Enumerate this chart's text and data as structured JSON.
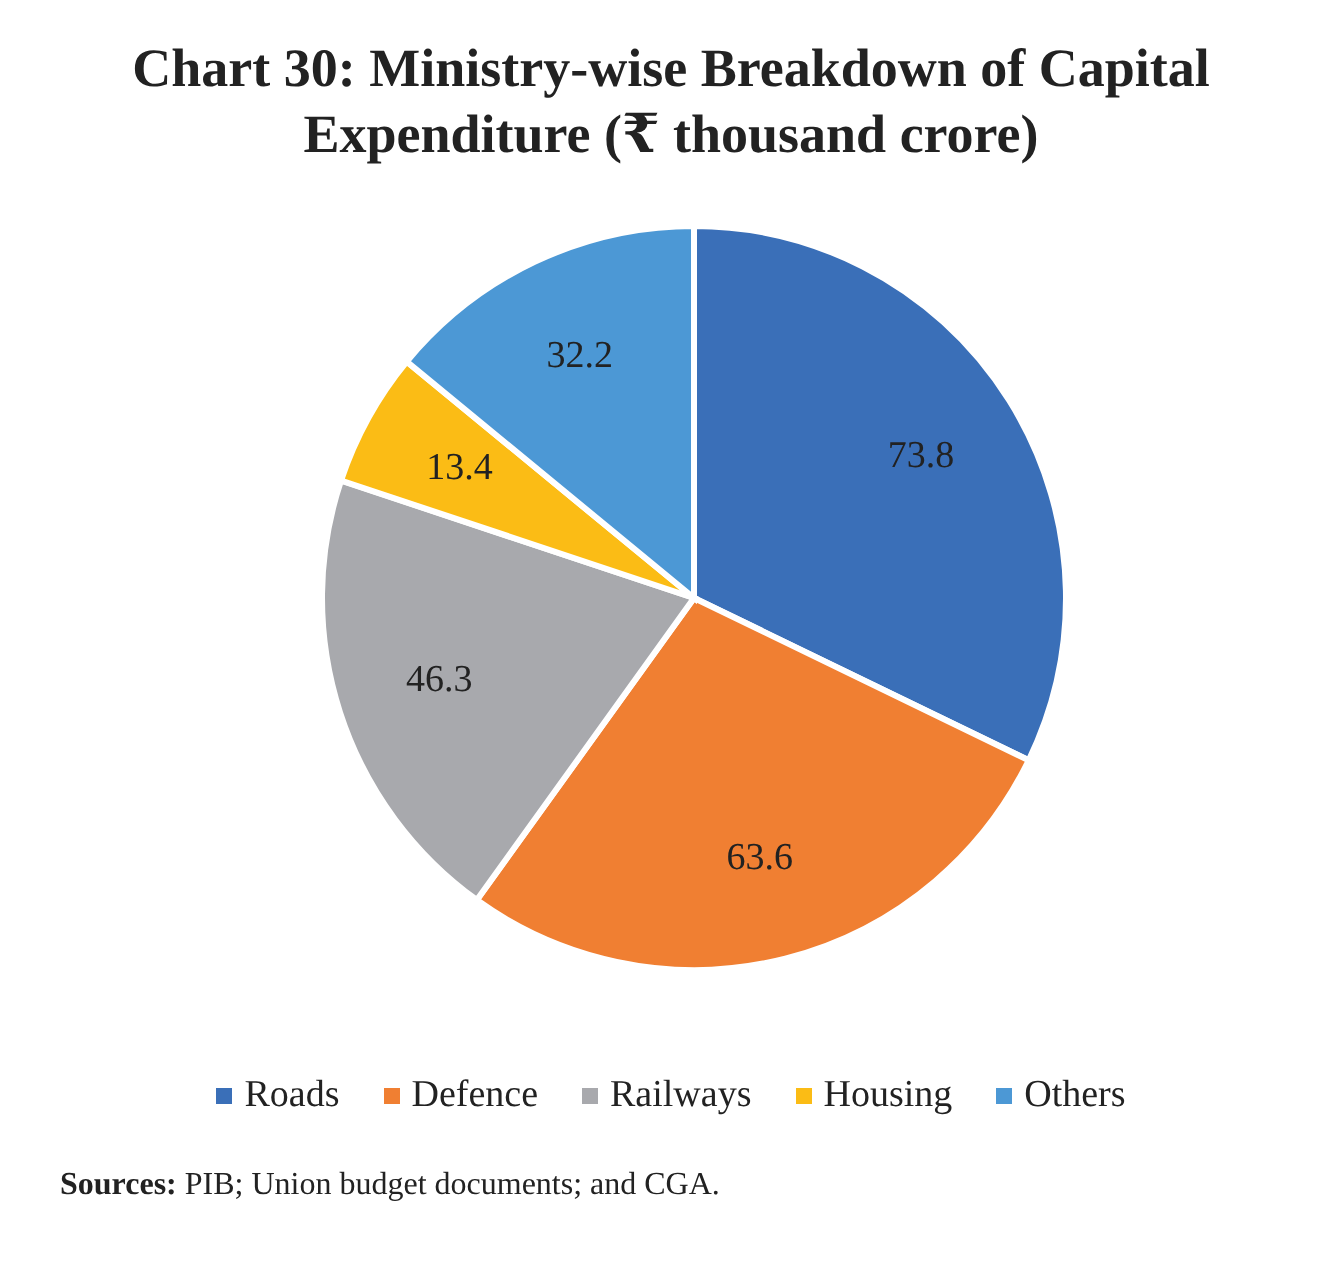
{
  "chart_data": {
    "type": "pie",
    "title": "Chart 30: Ministry-wise Breakdown of Capital Expenditure (₹ thousand crore)",
    "categories": [
      "Roads",
      "Defence",
      "Railways",
      "Housing",
      "Others"
    ],
    "values": [
      73.8,
      63.6,
      46.3,
      13.4,
      32.2
    ],
    "colors": [
      "#3a6fb8",
      "#f07f32",
      "#a8a9ad",
      "#fbbc15",
      "#4c98d5"
    ],
    "data_labels": true,
    "legend": "bottom",
    "annotations": [
      "Sources: PIB; Union budget documents; and CGA."
    ]
  }
}
